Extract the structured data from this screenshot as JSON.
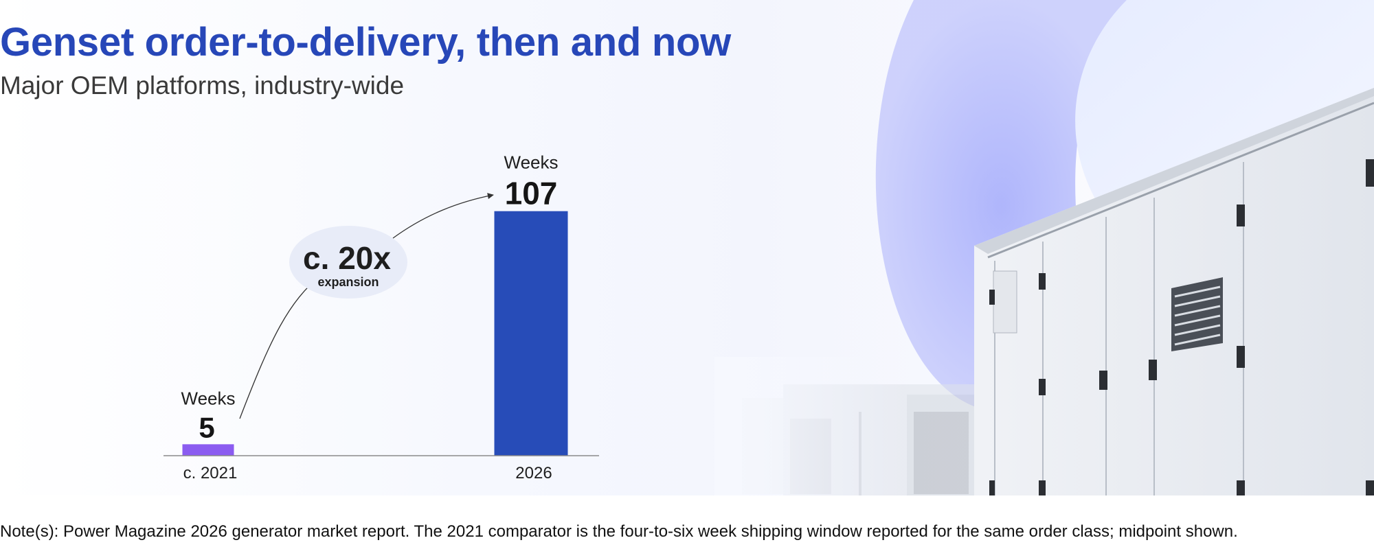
{
  "header": {
    "title": "Genset order-to-delivery, then and now",
    "subtitle": "Major OEM platforms, industry-wide"
  },
  "chart_data": {
    "type": "bar",
    "categories": [
      "c. 2021",
      "2026"
    ],
    "values": [
      5,
      107
    ],
    "unit_label": "Weeks",
    "value_labels": [
      "5",
      "107"
    ],
    "colors": [
      "#8b5cf0",
      "#274cb8"
    ],
    "annotation": {
      "value": "c. 20x",
      "caption": "expansion"
    },
    "grid": false,
    "legend": "none"
  },
  "footer": {
    "note": "Note(s): Power Magazine 2026 generator market report. The 2021 comparator is the four-to-six week shipping window reported for the same order class; midpoint shown."
  },
  "icons": {
    "background": "generator-enclosure-illustration"
  }
}
